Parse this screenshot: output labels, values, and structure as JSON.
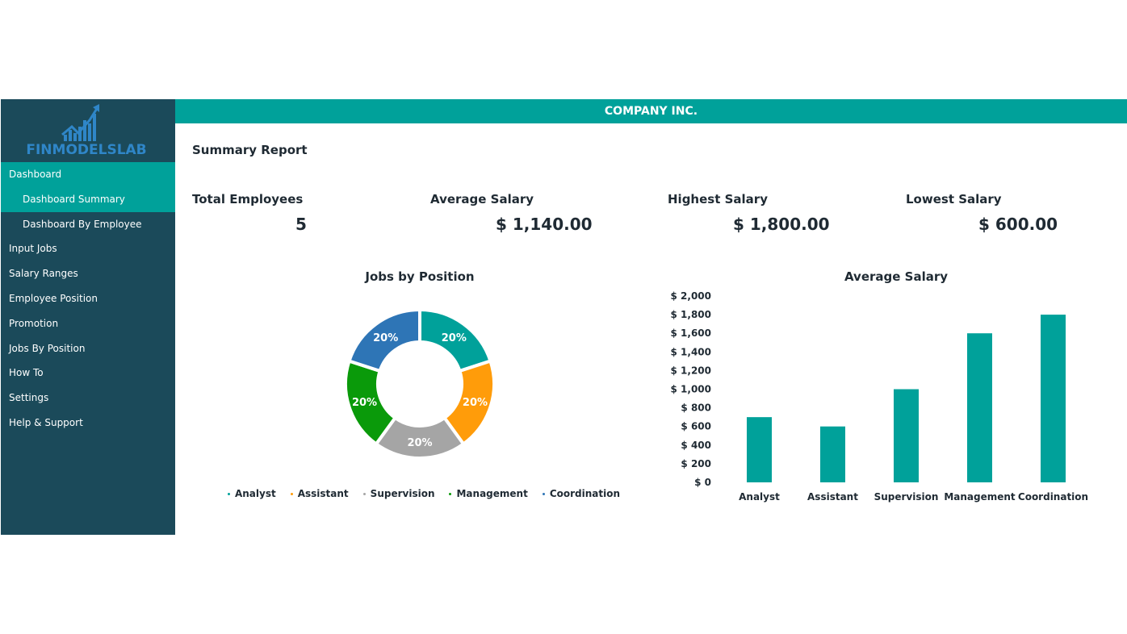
{
  "app": {
    "logo_text": "FINMODELSLAB",
    "company": "COMPANY INC."
  },
  "sidebar": {
    "items": [
      {
        "label": "Dashboard",
        "active": true,
        "sub": false
      },
      {
        "label": "Dashboard Summary",
        "active": true,
        "sub": true
      },
      {
        "label": "Dashboard By Employee",
        "active": false,
        "sub": true
      },
      {
        "label": "Input Jobs",
        "active": false,
        "sub": false
      },
      {
        "label": "Salary Ranges",
        "active": false,
        "sub": false
      },
      {
        "label": "Employee Position",
        "active": false,
        "sub": false
      },
      {
        "label": "Promotion",
        "active": false,
        "sub": false
      },
      {
        "label": "Jobs By Position",
        "active": false,
        "sub": false
      },
      {
        "label": "How To",
        "active": false,
        "sub": false
      },
      {
        "label": "Settings",
        "active": false,
        "sub": false
      },
      {
        "label": "Help & Support",
        "active": false,
        "sub": false
      }
    ]
  },
  "main": {
    "title": "Summary Report",
    "kpis": [
      {
        "label": "Total Employees",
        "value": "5"
      },
      {
        "label": "Average Salary",
        "value": "$ 1,140.00"
      },
      {
        "label": "Highest Salary",
        "value": "$ 1,800.00"
      },
      {
        "label": "Lowest Salary",
        "value": "$ 600.00"
      }
    ]
  },
  "colors": {
    "sidebar_bg": "#1b4a5a",
    "accent": "#00a19a",
    "analyst": "#00a19a",
    "assistant": "#ff9c0a",
    "supervision": "#a5a5a5",
    "management": "#0a9a0a",
    "coordination": "#2e75b6"
  },
  "chart_data": [
    {
      "type": "pie",
      "title": "Jobs by Position",
      "categories": [
        "Analyst",
        "Assistant",
        "Supervision",
        "Management",
        "Coordination"
      ],
      "values": [
        20,
        20,
        20,
        20,
        20
      ],
      "labels": [
        "20%",
        "20%",
        "20%",
        "20%",
        "20%"
      ],
      "legend": "bottom",
      "donut": true
    },
    {
      "type": "bar",
      "title": "Average Salary",
      "categories": [
        "Analyst",
        "Assistant",
        "Supervision",
        "Management",
        "Coordination"
      ],
      "values": [
        700,
        600,
        1000,
        1600,
        1800
      ],
      "ylim": [
        0,
        2000
      ],
      "yticks": [
        0,
        200,
        400,
        600,
        800,
        1000,
        1200,
        1400,
        1600,
        1800,
        2000
      ],
      "ytick_labels": [
        "$ 0",
        "$ 200",
        "$ 400",
        "$ 600",
        "$ 800",
        "$ 1,000",
        "$ 1,200",
        "$ 1,400",
        "$ 1,600",
        "$ 1,800",
        "$ 2,000"
      ],
      "grid": false,
      "color": "#00a19a"
    }
  ]
}
